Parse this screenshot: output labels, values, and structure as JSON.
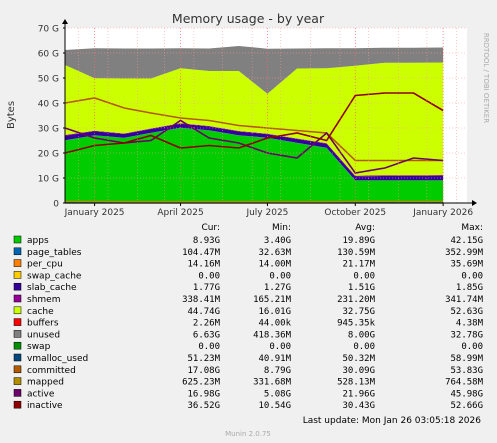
{
  "chart_data": {
    "type": "area",
    "title": "Memory usage - by year",
    "ylabel": "Bytes",
    "watermark": "RRDTOOL / TOBI OETIKER",
    "ylim": [
      0,
      70
    ],
    "yunit": "G",
    "yticks": [
      "0",
      "10 G",
      "20 G",
      "30 G",
      "40 G",
      "50 G",
      "60 G",
      "70 G"
    ],
    "xticks": [
      "January 2025",
      "April 2025",
      "July 2025",
      "October 2025",
      "January 2026"
    ],
    "x": [
      "2024-12",
      "2025-01",
      "2025-02",
      "2025-03",
      "2025-04",
      "2025-05",
      "2025-06",
      "2025-07",
      "2025-08",
      "2025-09",
      "2025-10",
      "2025-11",
      "2025-12",
      "2026-01"
    ],
    "series": [
      {
        "name": "apps",
        "color": "#00cc00",
        "values": [
          25,
          27,
          26,
          28,
          30,
          29,
          27,
          26,
          24,
          22,
          9,
          9,
          9,
          9
        ]
      },
      {
        "name": "page_tables",
        "color": "#0066b3",
        "values": [
          0.1,
          0.1,
          0.1,
          0.1,
          0.1,
          0.1,
          0.1,
          0.1,
          0.1,
          0.1,
          0.1,
          0.1,
          0.1,
          0.1
        ]
      },
      {
        "name": "per_cpu",
        "color": "#ff8000",
        "values": [
          0.01,
          0.01,
          0.01,
          0.01,
          0.01,
          0.01,
          0.01,
          0.01,
          0.01,
          0.01,
          0.01,
          0.01,
          0.01,
          0.01
        ]
      },
      {
        "name": "swap_cache",
        "color": "#ffcc00",
        "values": [
          0,
          0,
          0,
          0,
          0,
          0,
          0,
          0,
          0,
          0,
          0,
          0,
          0,
          0
        ]
      },
      {
        "name": "slab_cache",
        "color": "#330099",
        "values": [
          1.8,
          1.6,
          1.5,
          1.5,
          1.6,
          1.5,
          1.5,
          1.4,
          1.5,
          1.6,
          1.5,
          1.7,
          1.7,
          1.8
        ]
      },
      {
        "name": "shmem",
        "color": "#990099",
        "values": [
          0.3,
          0.2,
          0.2,
          0.2,
          0.2,
          0.2,
          0.2,
          0.2,
          0.2,
          0.2,
          0.3,
          0.3,
          0.3,
          0.3
        ]
      },
      {
        "name": "cache",
        "color": "#ccff00",
        "values": [
          28,
          21,
          22,
          20,
          22,
          22,
          24,
          16,
          28,
          30,
          44,
          45,
          45,
          45
        ]
      },
      {
        "name": "buffers",
        "color": "#ff0000",
        "values": [
          0.001,
          0.001,
          0.001,
          0.001,
          0.001,
          0.001,
          0.001,
          0.001,
          0.001,
          0.001,
          0.001,
          0.001,
          0.001,
          0.002
        ]
      },
      {
        "name": "unused",
        "color": "#808080",
        "values": [
          6,
          12,
          12,
          12,
          8,
          9,
          10,
          18,
          8,
          8,
          7,
          6,
          6,
          6
        ]
      },
      {
        "name": "swap",
        "color": "#008f00",
        "values": [
          0,
          0,
          0,
          0,
          0,
          0,
          0,
          0,
          0,
          0,
          0,
          0,
          0,
          0
        ]
      },
      {
        "name": "vmalloc_used",
        "color": "#00487d",
        "line": true,
        "values": [
          0.05,
          0.05,
          0.05,
          0.05,
          0.05,
          0.05,
          0.05,
          0.05,
          0.05,
          0.05,
          0.05,
          0.05,
          0.05,
          0.05
        ]
      },
      {
        "name": "committed",
        "color": "#b35a00",
        "line": true,
        "values": [
          40,
          42,
          38,
          36,
          34,
          33,
          31,
          30,
          29,
          28,
          17,
          17,
          17,
          17
        ]
      },
      {
        "name": "mapped",
        "color": "#b38f00",
        "line": true,
        "values": [
          0.6,
          0.6,
          0.5,
          0.5,
          0.5,
          0.5,
          0.5,
          0.5,
          0.5,
          0.5,
          0.6,
          0.6,
          0.6,
          0.6
        ]
      },
      {
        "name": "active",
        "color": "#6b006b",
        "line": true,
        "values": [
          30,
          26,
          24,
          25,
          33,
          26,
          24,
          20,
          18,
          28,
          12,
          14,
          18,
          17
        ]
      },
      {
        "name": "inactive",
        "color": "#8f0000",
        "line": true,
        "values": [
          20,
          23,
          24,
          27,
          22,
          23,
          22,
          26,
          28,
          25,
          43,
          44,
          44,
          37
        ]
      }
    ]
  },
  "legend": {
    "headers": [
      "Cur:",
      "Min:",
      "Avg:",
      "Max:"
    ],
    "rows": [
      {
        "name": "apps",
        "color": "#00cc00",
        "cur": "8.93G",
        "min": "3.40G",
        "avg": "19.89G",
        "max": "42.15G"
      },
      {
        "name": "page_tables",
        "color": "#0066b3",
        "cur": "104.47M",
        "min": "32.63M",
        "avg": "130.59M",
        "max": "352.99M"
      },
      {
        "name": "per_cpu",
        "color": "#ff8000",
        "cur": "14.16M",
        "min": "14.00M",
        "avg": "21.17M",
        "max": "35.69M"
      },
      {
        "name": "swap_cache",
        "color": "#ffcc00",
        "cur": "0.00",
        "min": "0.00",
        "avg": "0.00",
        "max": "0.00"
      },
      {
        "name": "slab_cache",
        "color": "#330099",
        "cur": "1.77G",
        "min": "1.27G",
        "avg": "1.51G",
        "max": "1.85G"
      },
      {
        "name": "shmem",
        "color": "#990099",
        "cur": "338.41M",
        "min": "165.21M",
        "avg": "231.20M",
        "max": "341.74M"
      },
      {
        "name": "cache",
        "color": "#ccff00",
        "cur": "44.74G",
        "min": "16.01G",
        "avg": "32.75G",
        "max": "52.63G"
      },
      {
        "name": "buffers",
        "color": "#ff0000",
        "cur": "2.26M",
        "min": "44.00k",
        "avg": "945.35k",
        "max": "4.38M"
      },
      {
        "name": "unused",
        "color": "#808080",
        "cur": "6.63G",
        "min": "418.36M",
        "avg": "8.00G",
        "max": "32.78G"
      },
      {
        "name": "swap",
        "color": "#008f00",
        "cur": "0.00",
        "min": "0.00",
        "avg": "0.00",
        "max": "0.00"
      },
      {
        "name": "vmalloc_used",
        "color": "#00487d",
        "cur": "51.23M",
        "min": "40.91M",
        "avg": "50.32M",
        "max": "58.99M"
      },
      {
        "name": "committed",
        "color": "#b35a00",
        "cur": "17.08G",
        "min": "8.79G",
        "avg": "30.09G",
        "max": "53.83G"
      },
      {
        "name": "mapped",
        "color": "#b38f00",
        "cur": "625.23M",
        "min": "331.68M",
        "avg": "528.13M",
        "max": "764.58M"
      },
      {
        "name": "active",
        "color": "#6b006b",
        "cur": "16.98G",
        "min": "5.08G",
        "avg": "21.96G",
        "max": "45.98G"
      },
      {
        "name": "inactive",
        "color": "#8f0000",
        "cur": "36.52G",
        "min": "10.54G",
        "avg": "30.43G",
        "max": "52.66G"
      }
    ]
  },
  "footer": {
    "last_update": "Last update: Mon Jan 26 03:05:18 2026",
    "generator": "Munin 2.0.75"
  }
}
